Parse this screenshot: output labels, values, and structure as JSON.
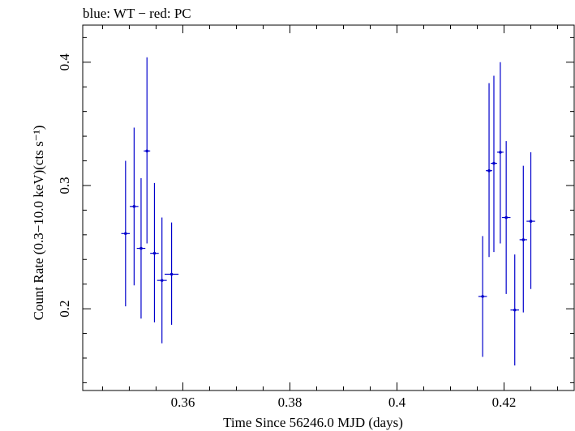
{
  "chart_data": {
    "type": "scatter",
    "title": "blue: WT − red: PC",
    "xlabel": "Time Since 56246.0 MJD (days)",
    "ylabel": "Count Rate (0.3−10.0 keV)(cts s⁻¹)",
    "xlim": [
      0.3413,
      0.4331
    ],
    "ylim": [
      0.1337,
      0.4301
    ],
    "xticks": [
      0.36,
      0.38,
      0.4,
      0.42
    ],
    "xtick_labels": [
      "0.36",
      "0.38",
      "0.4",
      "0.42"
    ],
    "yticks": [
      0.2,
      0.3,
      0.4
    ],
    "ytick_labels": [
      "0.2",
      "0.3",
      "0.4"
    ],
    "grid": false,
    "series": [
      {
        "color": "#0000cc",
        "points": [
          {
            "x": 0.3493,
            "y": 0.261,
            "xerr": 0.0008,
            "ylo": 0.202,
            "yhi": 0.32
          },
          {
            "x": 0.3509,
            "y": 0.283,
            "xerr": 0.0008,
            "ylo": 0.219,
            "yhi": 0.347
          },
          {
            "x": 0.3522,
            "y": 0.249,
            "xerr": 0.0008,
            "ylo": 0.192,
            "yhi": 0.306
          },
          {
            "x": 0.3533,
            "y": 0.328,
            "xerr": 0.0006,
            "ylo": 0.253,
            "yhi": 0.404
          },
          {
            "x": 0.3547,
            "y": 0.245,
            "xerr": 0.0008,
            "ylo": 0.189,
            "yhi": 0.302
          },
          {
            "x": 0.3561,
            "y": 0.223,
            "xerr": 0.0009,
            "ylo": 0.172,
            "yhi": 0.274
          },
          {
            "x": 0.3579,
            "y": 0.228,
            "xerr": 0.0013,
            "ylo": 0.187,
            "yhi": 0.27
          },
          {
            "x": 0.416,
            "y": 0.21,
            "xerr": 0.0008,
            "ylo": 0.161,
            "yhi": 0.259
          },
          {
            "x": 0.4172,
            "y": 0.312,
            "xerr": 0.0006,
            "ylo": 0.242,
            "yhi": 0.383
          },
          {
            "x": 0.4181,
            "y": 0.318,
            "xerr": 0.0006,
            "ylo": 0.246,
            "yhi": 0.389
          },
          {
            "x": 0.4193,
            "y": 0.327,
            "xerr": 0.0006,
            "ylo": 0.253,
            "yhi": 0.4
          },
          {
            "x": 0.4204,
            "y": 0.274,
            "xerr": 0.0008,
            "ylo": 0.212,
            "yhi": 0.336
          },
          {
            "x": 0.422,
            "y": 0.199,
            "xerr": 0.0008,
            "ylo": 0.154,
            "yhi": 0.244
          },
          {
            "x": 0.4236,
            "y": 0.256,
            "xerr": 0.0007,
            "ylo": 0.197,
            "yhi": 0.316
          },
          {
            "x": 0.425,
            "y": 0.271,
            "xerr": 0.0008,
            "ylo": 0.216,
            "yhi": 0.327
          }
        ]
      }
    ]
  }
}
